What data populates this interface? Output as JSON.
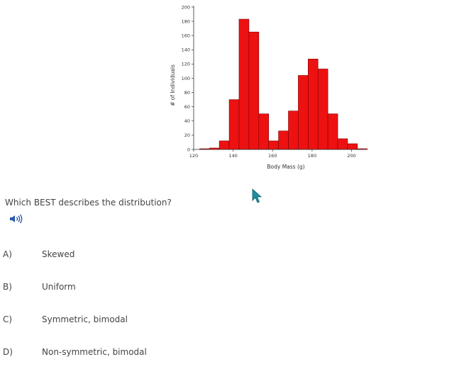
{
  "chart_data": {
    "type": "bar",
    "title": "",
    "xlabel": "Body Mass (g)",
    "ylabel": "# of Individuals",
    "xlim": [
      120,
      207
    ],
    "ylim": [
      0,
      200
    ],
    "xticks": [
      120,
      140,
      160,
      180,
      200
    ],
    "yticks": [
      0,
      20,
      40,
      60,
      80,
      100,
      120,
      140,
      160,
      180,
      200
    ],
    "bin_width": 5,
    "bin_starts": [
      123,
      128,
      133,
      138,
      143,
      148,
      153,
      158,
      163,
      168,
      173,
      178,
      183,
      188,
      193,
      198,
      203
    ],
    "values": [
      1,
      2,
      12,
      70,
      183,
      165,
      50,
      12,
      26,
      54,
      104,
      127,
      113,
      50,
      15,
      8,
      1
    ],
    "bar_color": "#ee1111",
    "bar_edge_color": "#7a0000",
    "grid": false
  },
  "question": {
    "text": "Which BEST describes the distribution?",
    "audio_icon": "speaker-icon"
  },
  "options": [
    {
      "letter": "A)",
      "text": "Skewed"
    },
    {
      "letter": "B)",
      "text": "Uniform"
    },
    {
      "letter": "C)",
      "text": "Symmetric, bimodal"
    },
    {
      "letter": "D)",
      "text": "Non-symmetric, bimodal"
    }
  ],
  "colors": {
    "accent": "#2b5aa8",
    "cursor": "#1e8fa0"
  }
}
